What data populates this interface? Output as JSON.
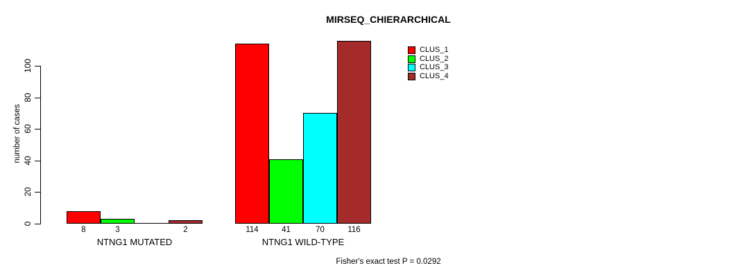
{
  "chart_data": {
    "type": "bar",
    "title": "MIRSEQ_CHIERARCHICAL",
    "ylabel": "number of cases",
    "xlabel": "",
    "ylim": [
      0,
      100
    ],
    "yticks": [
      0,
      20,
      40,
      60,
      80,
      100
    ],
    "grid": "off",
    "legend_position": "top-right-inside",
    "legend": [
      {
        "name": "CLUS_1",
        "color": "#FF0000"
      },
      {
        "name": "CLUS_2",
        "color": "#00FF00"
      },
      {
        "name": "CLUS_3",
        "color": "#00FFFF"
      },
      {
        "name": "CLUS_4",
        "color": "#A52A2A"
      }
    ],
    "categories": [
      "NTNG1 MUTATED",
      "NTNG1 WILD-TYPE"
    ],
    "groups": [
      {
        "label": "NTNG1 MUTATED",
        "values": [
          8,
          3,
          0,
          2
        ],
        "bar_labels": [
          "8",
          "3",
          "",
          "2"
        ]
      },
      {
        "label": "NTNG1 WILD-TYPE",
        "values": [
          114,
          41,
          70,
          116
        ],
        "bar_labels": [
          "114",
          "41",
          "70",
          "116"
        ]
      }
    ],
    "annotation": "Fisher's exact test P = 0.0292"
  }
}
